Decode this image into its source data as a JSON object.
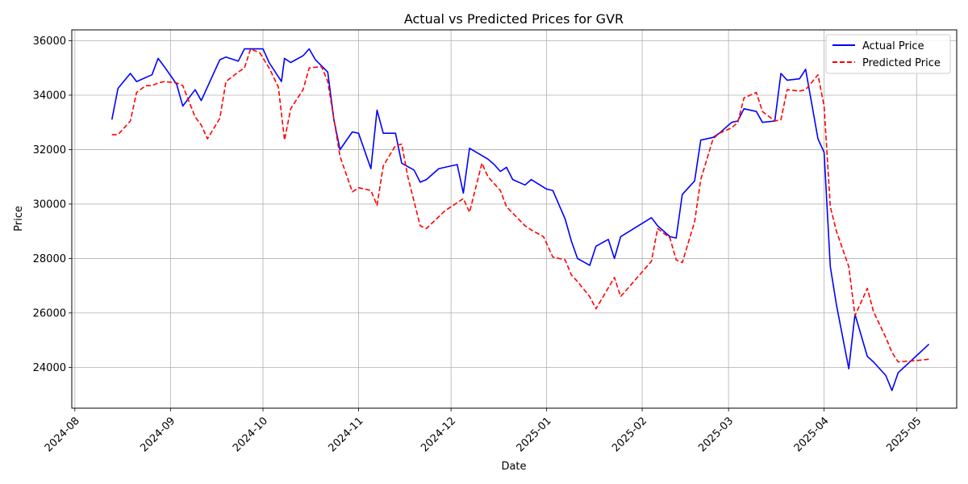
{
  "chart_data": {
    "type": "line",
    "title": "Actual vs Predicted Prices for GVR",
    "xlabel": "Date",
    "ylabel": "Price",
    "x_ticks": [
      "2024-08",
      "2024-09",
      "2024-10",
      "2024-11",
      "2024-12",
      "2025-01",
      "2025-02",
      "2025-03",
      "2025-04",
      "2025-05"
    ],
    "y_ticks": [
      "24000",
      "26000",
      "28000",
      "30000",
      "32000",
      "34000",
      "36000"
    ],
    "xlim": [
      "2024-07-31",
      "2025-05-14"
    ],
    "ylim": [
      22500,
      36400
    ],
    "grid": true,
    "legend_position": "top-right",
    "series": [
      {
        "name": "Actual Price",
        "color": "#0000ff",
        "style": "solid",
        "points": [
          [
            "2024-08-13",
            33100
          ],
          [
            "2024-08-15",
            34250
          ],
          [
            "2024-08-19",
            34800
          ],
          [
            "2024-08-21",
            34500
          ],
          [
            "2024-08-26",
            34750
          ],
          [
            "2024-08-28",
            35350
          ],
          [
            "2024-08-30",
            35050
          ],
          [
            "2024-09-03",
            34400
          ],
          [
            "2024-09-05",
            33600
          ],
          [
            "2024-09-09",
            34200
          ],
          [
            "2024-09-11",
            33800
          ],
          [
            "2024-09-17",
            35300
          ],
          [
            "2024-09-19",
            35400
          ],
          [
            "2024-09-23",
            35250
          ],
          [
            "2024-09-25",
            35700
          ],
          [
            "2024-09-30",
            35700
          ],
          [
            "2024-10-01",
            35700
          ],
          [
            "2024-10-03",
            35200
          ],
          [
            "2024-10-07",
            34500
          ],
          [
            "2024-10-08",
            35350
          ],
          [
            "2024-10-10",
            35200
          ],
          [
            "2024-10-14",
            35450
          ],
          [
            "2024-10-16",
            35700
          ],
          [
            "2024-10-18",
            35300
          ],
          [
            "2024-10-22",
            34850
          ],
          [
            "2024-10-24",
            33100
          ],
          [
            "2024-10-26",
            32000
          ],
          [
            "2024-10-30",
            32650
          ],
          [
            "2024-11-01",
            32600
          ],
          [
            "2024-11-05",
            31300
          ],
          [
            "2024-11-07",
            33450
          ],
          [
            "2024-11-09",
            32600
          ],
          [
            "2024-11-13",
            32600
          ],
          [
            "2024-11-15",
            31500
          ],
          [
            "2024-11-19",
            31250
          ],
          [
            "2024-11-21",
            30800
          ],
          [
            "2024-11-23",
            30900
          ],
          [
            "2024-11-27",
            31300
          ],
          [
            "2024-12-03",
            31450
          ],
          [
            "2024-12-05",
            30400
          ],
          [
            "2024-12-07",
            32050
          ],
          [
            "2024-12-13",
            31650
          ],
          [
            "2024-12-15",
            31450
          ],
          [
            "2024-12-17",
            31200
          ],
          [
            "2024-12-19",
            31350
          ],
          [
            "2024-12-21",
            30900
          ],
          [
            "2024-12-25",
            30700
          ],
          [
            "2024-12-27",
            30900
          ],
          [
            "2025-01-01",
            30550
          ],
          [
            "2025-01-03",
            30500
          ],
          [
            "2025-01-07",
            29450
          ],
          [
            "2025-01-09",
            28650
          ],
          [
            "2025-01-11",
            28000
          ],
          [
            "2025-01-15",
            27750
          ],
          [
            "2025-01-17",
            28450
          ],
          [
            "2025-01-21",
            28700
          ],
          [
            "2025-01-23",
            28000
          ],
          [
            "2025-01-25",
            28800
          ],
          [
            "2025-02-04",
            29500
          ],
          [
            "2025-02-06",
            29200
          ],
          [
            "2025-02-10",
            28800
          ],
          [
            "2025-02-12",
            28750
          ],
          [
            "2025-02-14",
            30350
          ],
          [
            "2025-02-18",
            30850
          ],
          [
            "2025-02-20",
            32350
          ],
          [
            "2025-02-24",
            32450
          ],
          [
            "2025-02-26",
            32600
          ],
          [
            "2025-03-02",
            33000
          ],
          [
            "2025-03-04",
            33050
          ],
          [
            "2025-03-06",
            33500
          ],
          [
            "2025-03-10",
            33400
          ],
          [
            "2025-03-12",
            33000
          ],
          [
            "2025-03-16",
            33050
          ],
          [
            "2025-03-18",
            34800
          ],
          [
            "2025-03-20",
            34550
          ],
          [
            "2025-03-24",
            34600
          ],
          [
            "2025-03-26",
            34950
          ],
          [
            "2025-03-30",
            32400
          ],
          [
            "2025-04-01",
            31900
          ],
          [
            "2025-04-03",
            27700
          ],
          [
            "2025-04-05",
            26300
          ],
          [
            "2025-04-09",
            23950
          ],
          [
            "2025-04-11",
            25950
          ],
          [
            "2025-04-15",
            24400
          ],
          [
            "2025-04-17",
            24200
          ],
          [
            "2025-04-21",
            23700
          ],
          [
            "2025-04-23",
            23150
          ],
          [
            "2025-04-25",
            23800
          ],
          [
            "2025-05-05",
            24850
          ]
        ]
      },
      {
        "name": "Predicted Price",
        "color": "#ff0000",
        "style": "dashed",
        "points": [
          [
            "2024-08-13",
            32550
          ],
          [
            "2024-08-15",
            32550
          ],
          [
            "2024-08-19",
            33050
          ],
          [
            "2024-08-21",
            34100
          ],
          [
            "2024-08-24",
            34350
          ],
          [
            "2024-08-26",
            34350
          ],
          [
            "2024-08-28",
            34450
          ],
          [
            "2024-08-30",
            34500
          ],
          [
            "2024-09-03",
            34450
          ],
          [
            "2024-09-05",
            34350
          ],
          [
            "2024-09-09",
            33200
          ],
          [
            "2024-09-11",
            32900
          ],
          [
            "2024-09-13",
            32400
          ],
          [
            "2024-09-17",
            33150
          ],
          [
            "2024-09-19",
            34500
          ],
          [
            "2024-09-23",
            34850
          ],
          [
            "2024-09-25",
            35000
          ],
          [
            "2024-09-27",
            35700
          ],
          [
            "2024-09-30",
            35550
          ],
          [
            "2024-10-03",
            35000
          ],
          [
            "2024-10-06",
            34300
          ],
          [
            "2024-10-08",
            32350
          ],
          [
            "2024-10-10",
            33500
          ],
          [
            "2024-10-14",
            34200
          ],
          [
            "2024-10-16",
            35000
          ],
          [
            "2024-10-20",
            35050
          ],
          [
            "2024-10-22",
            34500
          ],
          [
            "2024-10-26",
            31750
          ],
          [
            "2024-10-30",
            30450
          ],
          [
            "2024-11-01",
            30600
          ],
          [
            "2024-11-05",
            30500
          ],
          [
            "2024-11-07",
            29950
          ],
          [
            "2024-11-09",
            31400
          ],
          [
            "2024-11-13",
            32150
          ],
          [
            "2024-11-15",
            32200
          ],
          [
            "2024-11-17",
            31000
          ],
          [
            "2024-11-21",
            29200
          ],
          [
            "2024-11-23",
            29100
          ],
          [
            "2024-11-29",
            29750
          ],
          [
            "2024-12-03",
            30050
          ],
          [
            "2024-12-05",
            30200
          ],
          [
            "2024-12-07",
            29700
          ],
          [
            "2024-12-11",
            31500
          ],
          [
            "2024-12-13",
            31000
          ],
          [
            "2024-12-17",
            30500
          ],
          [
            "2024-12-19",
            29900
          ],
          [
            "2024-12-25",
            29200
          ],
          [
            "2024-12-27",
            29050
          ],
          [
            "2024-12-31",
            28800
          ],
          [
            "2025-01-03",
            28050
          ],
          [
            "2025-01-07",
            27950
          ],
          [
            "2025-01-09",
            27400
          ],
          [
            "2025-01-11",
            27150
          ],
          [
            "2025-01-15",
            26600
          ],
          [
            "2025-01-17",
            26150
          ],
          [
            "2025-01-23",
            27300
          ],
          [
            "2025-01-25",
            26600
          ],
          [
            "2025-02-04",
            27900
          ],
          [
            "2025-02-06",
            29100
          ],
          [
            "2025-02-10",
            28750
          ],
          [
            "2025-02-12",
            27950
          ],
          [
            "2025-02-14",
            27850
          ],
          [
            "2025-02-18",
            29350
          ],
          [
            "2025-02-20",
            30900
          ],
          [
            "2025-02-24",
            32400
          ],
          [
            "2025-02-26",
            32600
          ],
          [
            "2025-03-02",
            32800
          ],
          [
            "2025-03-04",
            33000
          ],
          [
            "2025-03-06",
            33900
          ],
          [
            "2025-03-10",
            34100
          ],
          [
            "2025-03-12",
            33400
          ],
          [
            "2025-03-16",
            33050
          ],
          [
            "2025-03-18",
            33100
          ],
          [
            "2025-03-20",
            34200
          ],
          [
            "2025-03-24",
            34150
          ],
          [
            "2025-03-26",
            34200
          ],
          [
            "2025-03-30",
            34750
          ],
          [
            "2025-04-01",
            33600
          ],
          [
            "2025-04-03",
            29900
          ],
          [
            "2025-04-05",
            29000
          ],
          [
            "2025-04-09",
            27700
          ],
          [
            "2025-04-11",
            25900
          ],
          [
            "2025-04-15",
            26900
          ],
          [
            "2025-04-17",
            26050
          ],
          [
            "2025-04-21",
            25100
          ],
          [
            "2025-04-23",
            24550
          ],
          [
            "2025-04-25",
            24200
          ],
          [
            "2025-05-01",
            24250
          ],
          [
            "2025-05-05",
            24300
          ]
        ]
      }
    ]
  }
}
